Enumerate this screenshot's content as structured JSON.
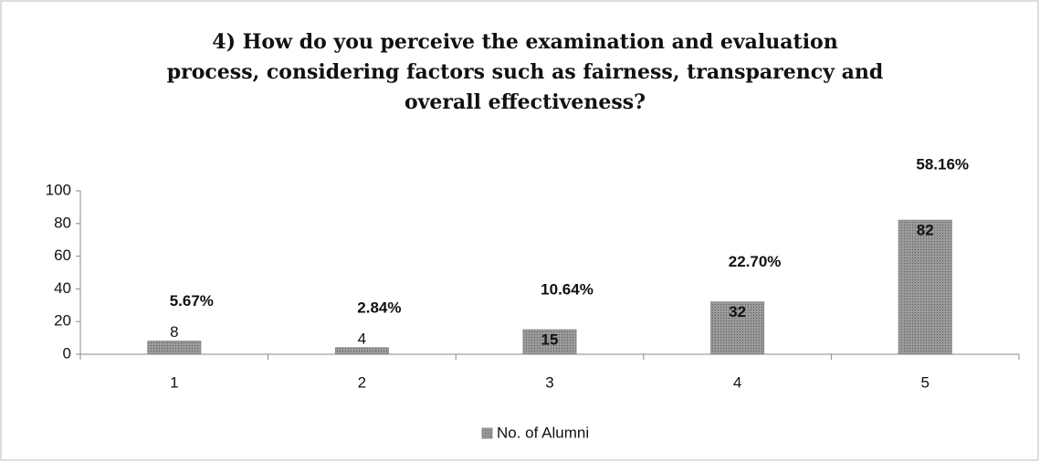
{
  "chart_data": {
    "type": "bar",
    "title": [
      "4) How do you perceive the examination and evaluation",
      "process, considering factors such as fairness, transparency and",
      "overall effectiveness?"
    ],
    "categories": [
      "1",
      "2",
      "3",
      "4",
      "5"
    ],
    "series": [
      {
        "name": "No. of Alumni",
        "color": "#8a8a8a",
        "values": [
          8,
          4,
          15,
          32,
          82
        ]
      }
    ],
    "annotations": [
      "5.67%",
      "2.84%",
      "10.64%",
      "22.70%",
      "58.16%"
    ],
    "ylim": [
      0,
      100
    ],
    "yticks": [
      0,
      20,
      40,
      60,
      80,
      100
    ],
    "grid": false,
    "legend": "bottom"
  }
}
